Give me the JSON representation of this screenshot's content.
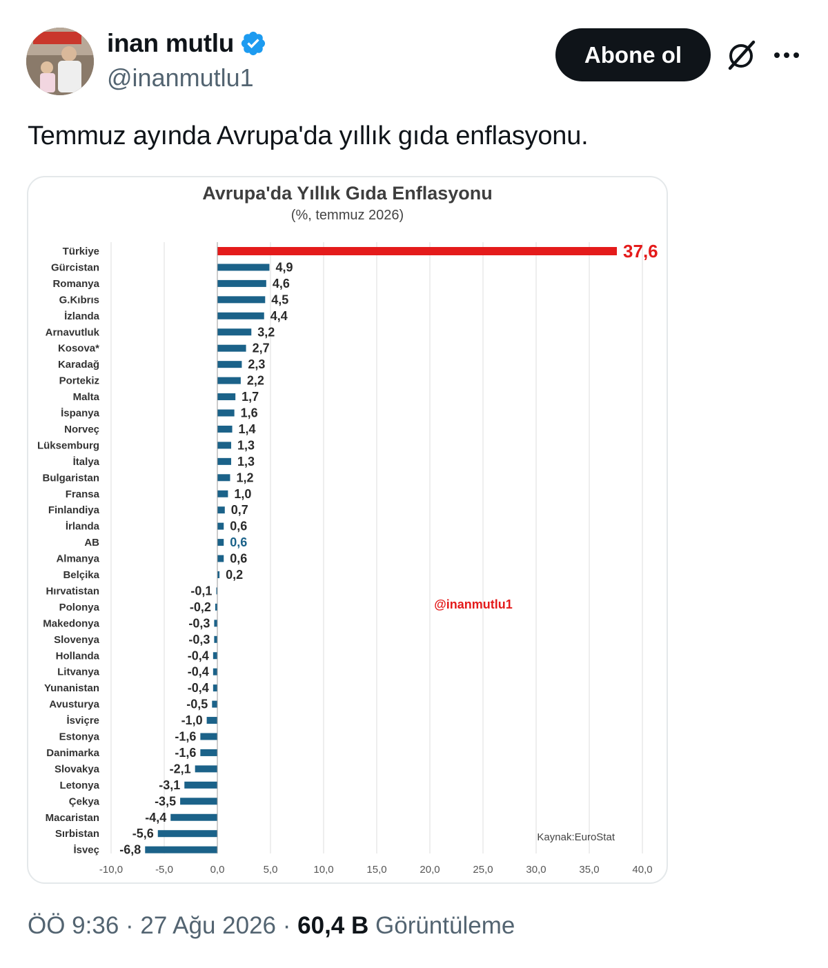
{
  "author": {
    "display_name": "inan mutlu",
    "handle": "@inanmutlu1",
    "verified_badge_color": "#1d9bf0"
  },
  "actions": {
    "follow_label": "Abone ol",
    "grok_icon": "grok-icon",
    "more_icon": "more-dots-icon"
  },
  "tweet": {
    "text": "Temmuz ayında Avrupa'da yıllık gıda enflasyonu."
  },
  "meta": {
    "time": "ÖÖ 9:36",
    "separator1": "·",
    "date": "27 Ağu 2026",
    "separator2": "·",
    "views_count": "60,4 B",
    "views_label": "Görüntüleme"
  },
  "chart_data": {
    "type": "bar",
    "orientation": "horizontal",
    "title": "Avrupa'da Yıllık Gıda Enflasyonu",
    "subtitle": "(%, temmuz 2026)",
    "watermark": "@inanmutlu1",
    "source": "Kaynak:EuroStat",
    "xlim": [
      -10,
      40
    ],
    "x_ticks": [
      "-10,0",
      "-5,0",
      "0,0",
      "5,0",
      "10,0",
      "15,0",
      "20,0",
      "25,0",
      "30,0",
      "35,0",
      "40,0"
    ],
    "grid": "vertical",
    "colors": {
      "default": "#1b6289",
      "highlight": "#e41b1b",
      "ab_label": "#1b6289",
      "watermark": "#e41b1b"
    },
    "categories": [
      "Türkiye",
      "Gürcistan",
      "Romanya",
      "G.Kıbrıs",
      "İzlanda",
      "Arnavutluk",
      "Kosova*",
      "Karadağ",
      "Portekiz",
      "Malta",
      "İspanya",
      "Norveç",
      "Lüksemburg",
      "İtalya",
      "Bulgaristan",
      "Fransa",
      "Finlandiya",
      "İrlanda",
      "AB",
      "Almanya",
      "Belçika",
      "Hırvatistan",
      "Polonya",
      "Makedonya",
      "Slovenya",
      "Hollanda",
      "Litvanya",
      "Yunanistan",
      "Avusturya",
      "İsviçre",
      "Estonya",
      "Danimarka",
      "Slovakya",
      "Letonya",
      "Çekya",
      "Macaristan",
      "Sırbistan",
      "İsveç"
    ],
    "values": [
      37.6,
      4.9,
      4.6,
      4.5,
      4.4,
      3.2,
      2.7,
      2.3,
      2.2,
      1.7,
      1.6,
      1.4,
      1.3,
      1.3,
      1.2,
      1.0,
      0.7,
      0.6,
      0.6,
      0.6,
      0.2,
      -0.1,
      -0.2,
      -0.3,
      -0.3,
      -0.4,
      -0.4,
      -0.4,
      -0.5,
      -1.0,
      -1.6,
      -1.6,
      -2.1,
      -3.1,
      -3.5,
      -4.4,
      -5.6,
      -6.8
    ],
    "value_labels": [
      "37,6",
      "4,9",
      "4,6",
      "4,5",
      "4,4",
      "3,2",
      "2,7",
      "2,3",
      "2,2",
      "1,7",
      "1,6",
      "1,4",
      "1,3",
      "1,3",
      "1,2",
      "1,0",
      "0,7",
      "0,6",
      "0,6",
      "0,6",
      "0,2",
      "-0,1",
      "-0,2",
      "-0,3",
      "-0,3",
      "-0,4",
      "-0,4",
      "-0,4",
      "-0,5",
      "-1,0",
      "-1,6",
      "-1,6",
      "-2,1",
      "-3,1",
      "-3,5",
      "-4,4",
      "-5,6",
      "-6,8"
    ],
    "highlight_category": "Türkiye",
    "emphasis_label_category": "AB"
  }
}
